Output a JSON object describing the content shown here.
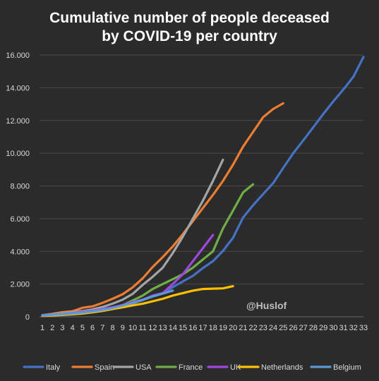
{
  "chart_data": {
    "type": "line",
    "title": [
      "Cumulative  number  of  people  deceased",
      "by  COVID-19  per  country"
    ],
    "xlabel": "",
    "ylabel": "",
    "xlim": [
      1,
      33
    ],
    "ylim": [
      0,
      16000
    ],
    "y_ticks": [
      0,
      2000,
      4000,
      6000,
      8000,
      10000,
      12000,
      14000,
      16000
    ],
    "y_tick_labels": [
      "0",
      "2.000",
      "4.000",
      "6.000",
      "8.000",
      "10.000",
      "12.000",
      "14.000",
      "16.000"
    ],
    "x_ticks": [
      1,
      2,
      3,
      4,
      5,
      6,
      7,
      8,
      9,
      10,
      11,
      12,
      13,
      14,
      15,
      16,
      17,
      18,
      19,
      20,
      21,
      22,
      23,
      24,
      25,
      26,
      27,
      28,
      29,
      30,
      31,
      32,
      33
    ],
    "grid": true,
    "legend_position": "bottom",
    "watermark": "@Huslof",
    "series": [
      {
        "name": "Italy",
        "color": "#4472c4",
        "x": [
          1,
          2,
          3,
          4,
          5,
          6,
          7,
          8,
          9,
          10,
          11,
          12,
          13,
          14,
          15,
          16,
          17,
          18,
          19,
          20,
          21,
          22,
          23,
          24,
          25,
          26,
          27,
          28,
          29,
          30,
          31,
          32,
          33
        ],
        "y": [
          80,
          110,
          150,
          200,
          230,
          290,
          370,
          470,
          630,
          830,
          1020,
          1270,
          1440,
          1810,
          2160,
          2500,
          2980,
          3400,
          4030,
          4830,
          6070,
          6820,
          7500,
          8170,
          9100,
          10000,
          10780,
          11590,
          12400,
          13170,
          13900,
          14680,
          15880
        ]
      },
      {
        "name": "Spain",
        "color": "#ed7d31",
        "x": [
          1,
          2,
          3,
          4,
          5,
          6,
          7,
          8,
          9,
          10,
          11,
          12,
          13,
          14,
          15,
          16,
          17,
          18,
          19,
          20,
          21,
          22,
          23,
          24,
          25
        ],
        "y": [
          100,
          180,
          280,
          340,
          550,
          640,
          850,
          1100,
          1380,
          1800,
          2350,
          3050,
          3650,
          4300,
          5050,
          5850,
          6650,
          7450,
          8300,
          9300,
          10400,
          11300,
          12200,
          12700,
          13050
        ]
      },
      {
        "name": "USA",
        "color": "#a5a5a5",
        "x": [
          1,
          2,
          3,
          4,
          5,
          6,
          7,
          8,
          9,
          10,
          11,
          12,
          13,
          14,
          15,
          16,
          17,
          18,
          19
        ],
        "y": [
          100,
          150,
          220,
          280,
          350,
          450,
          600,
          800,
          1050,
          1400,
          1950,
          2450,
          3000,
          3900,
          4900,
          6000,
          7100,
          8300,
          9600
        ]
      },
      {
        "name": "France",
        "color": "#70ad47",
        "x": [
          1,
          2,
          3,
          4,
          5,
          6,
          7,
          8,
          9,
          10,
          11,
          12,
          13,
          14,
          15,
          16,
          17,
          18,
          19,
          20,
          21,
          22
        ],
        "y": [
          80,
          120,
          150,
          200,
          250,
          300,
          370,
          560,
          710,
          1000,
          1300,
          1700,
          2000,
          2300,
          2600,
          3000,
          3500,
          4000,
          5400,
          6500,
          7600,
          8100
        ]
      },
      {
        "name": "UK",
        "color": "#9e48e0",
        "x": [
          1,
          2,
          3,
          4,
          5,
          6,
          7,
          8,
          9,
          10,
          11,
          12,
          13,
          14,
          15,
          16,
          17,
          18
        ],
        "y": [
          100,
          130,
          170,
          230,
          300,
          370,
          470,
          580,
          720,
          900,
          1050,
          1300,
          1450,
          2000,
          2600,
          3400,
          4200,
          5000
        ]
      },
      {
        "name": "Netherlands",
        "color": "#ffc000",
        "x": [
          1,
          2,
          3,
          4,
          5,
          6,
          7,
          8,
          9,
          10,
          11,
          12,
          13,
          14,
          15,
          16,
          17,
          18,
          19,
          20
        ],
        "y": [
          50,
          80,
          110,
          150,
          200,
          270,
          360,
          480,
          580,
          700,
          800,
          950,
          1100,
          1300,
          1450,
          1600,
          1700,
          1720,
          1740,
          1870
        ]
      },
      {
        "name": "Belgium",
        "color": "#5b9bd5",
        "x": [
          1,
          2,
          3,
          4,
          5,
          6,
          7,
          8,
          9,
          10,
          11,
          12,
          13,
          14
        ],
        "y": [
          80,
          120,
          160,
          200,
          260,
          330,
          420,
          540,
          690,
          840,
          1030,
          1240,
          1420,
          1600
        ]
      }
    ]
  }
}
